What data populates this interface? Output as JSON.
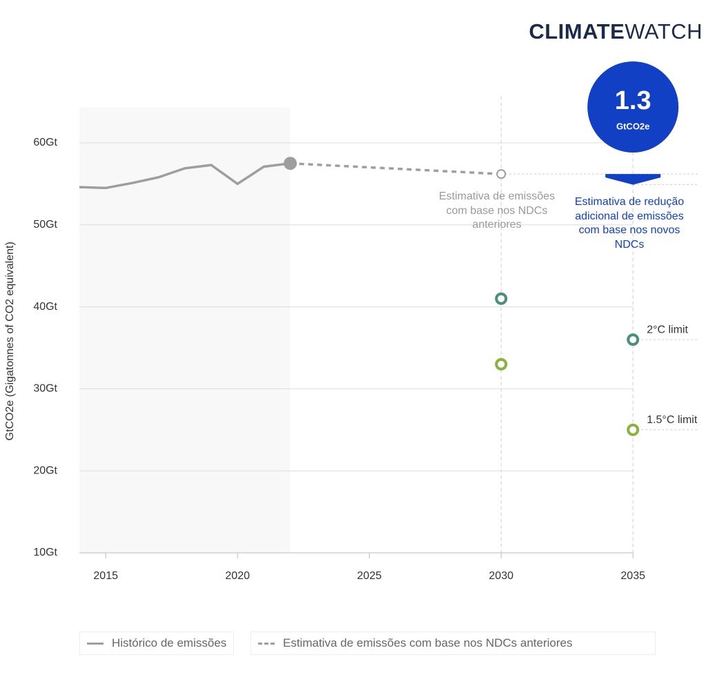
{
  "logo": {
    "bold": "CLIMATE",
    "light": "WATCH"
  },
  "chart_data": {
    "type": "line",
    "y_label": "GtCO2e (Gigatonnes of CO2 equivalent)",
    "xlim": [
      2014,
      2037.5
    ],
    "ylim": [
      10,
      65
    ],
    "xticks": [
      2015,
      2020,
      2025,
      2030,
      2035
    ],
    "yticks": [
      {
        "value": 10,
        "label": "10Gt"
      },
      {
        "value": 20,
        "label": "20Gt"
      },
      {
        "value": 30,
        "label": "30Gt"
      },
      {
        "value": 40,
        "label": "40Gt"
      },
      {
        "value": 50,
        "label": "50Gt"
      },
      {
        "value": 60,
        "label": "60Gt"
      }
    ],
    "grid": true,
    "shaded_xlim": [
      2014,
      2022
    ],
    "series": [
      {
        "name": "Histórico de emissões",
        "color": "#9e9e9e",
        "style": "solid",
        "x": [
          2014,
          2015,
          2016,
          2017,
          2018,
          2019,
          2020,
          2021,
          2022
        ],
        "values": [
          54.6,
          54.5,
          55.1,
          55.8,
          56.9,
          57.3,
          55.0,
          57.1,
          57.5
        ]
      },
      {
        "name": "Estimativa de emissões com base nos NDCs anteriores",
        "color": "#9e9e9e",
        "style": "dashed",
        "x": [
          2022,
          2030
        ],
        "values": [
          57.5,
          56.2
        ]
      },
      {
        "name": "2°C limit",
        "color": "#4a9078",
        "style": "ring",
        "x": [
          2030,
          2035
        ],
        "values": [
          41,
          36
        ]
      },
      {
        "name": "1.5°C limit",
        "color": "#8ab23e",
        "style": "ring",
        "x": [
          2030,
          2035
        ],
        "values": [
          33,
          25
        ]
      }
    ],
    "annotations": {
      "previous": "Estimativa de emissões com base nos NDCs anteriores",
      "reduction": "Estimativa de redução adicional de emissões com base nos novos NDCs"
    },
    "badge": {
      "value": 1.3,
      "unit": "GtCO2e",
      "color": "#1240c4"
    }
  }
}
